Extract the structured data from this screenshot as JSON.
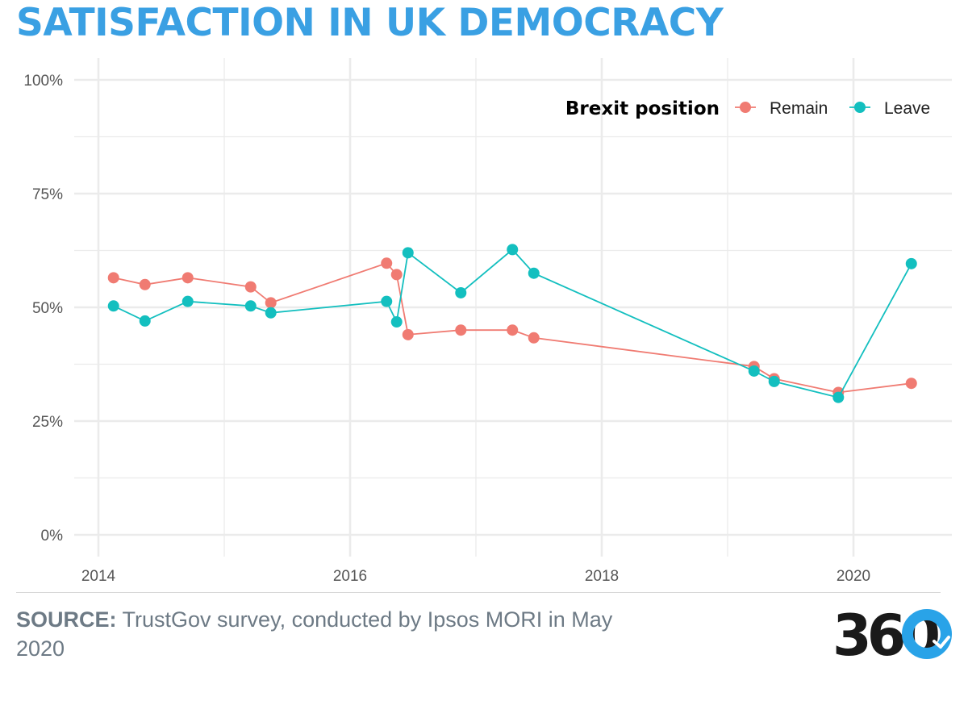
{
  "title": "SATISFACTION IN UK DEMOCRACY",
  "colors": {
    "title": "#3aa0e3",
    "remain": "#f07b72",
    "leave": "#13bfbf",
    "axis_text": "#555555",
    "gridline": "#ebebeb",
    "source_text": "#6d7a85",
    "logo_dark": "#1a1a1a",
    "logo_blue": "#29a3e8"
  },
  "legend": {
    "title": "Brexit position",
    "placement": "top-right"
  },
  "source": {
    "label": "SOURCE:",
    "text": "TrustGov survey, conducted by Ipsos MORI in May 2020"
  },
  "logo": {
    "text": "360",
    "icon": "360-logo"
  },
  "chart_data": {
    "type": "line",
    "title": "SATISFACTION IN UK DEMOCRACY",
    "xlabel": "",
    "ylabel": "",
    "x_range": [
      2013.7,
      2020.8
    ],
    "ylim": [
      0,
      100
    ],
    "x_ticks": [
      2014,
      2016,
      2018,
      2020
    ],
    "x_tick_labels": [
      "2014",
      "2016",
      "2018",
      "2020"
    ],
    "y_ticks": [
      0,
      25,
      50,
      75,
      100
    ],
    "y_tick_labels": [
      "0%",
      "25%",
      "50%",
      "75%",
      "100%"
    ],
    "grid": true,
    "markers": true,
    "series": [
      {
        "name": "Remain",
        "color_key": "remain",
        "x": [
          2014.12,
          2014.37,
          2014.71,
          2015.21,
          2015.37,
          2016.29,
          2016.37,
          2016.46,
          2016.88,
          2017.29,
          2017.46,
          2019.21,
          2019.37,
          2019.88,
          2020.46
        ],
        "y": [
          56.5,
          55,
          56.5,
          54.5,
          51,
          59.7,
          57.2,
          44,
          45,
          45,
          43.3,
          37,
          34.3,
          31.3,
          33.3
        ]
      },
      {
        "name": "Leave",
        "color_key": "leave",
        "x": [
          2014.12,
          2014.37,
          2014.71,
          2015.21,
          2015.37,
          2016.29,
          2016.37,
          2016.46,
          2016.88,
          2017.29,
          2017.46,
          2019.21,
          2019.37,
          2019.88,
          2020.46
        ],
        "y": [
          50.3,
          47,
          51.3,
          50.3,
          48.8,
          51.3,
          46.8,
          62,
          53.2,
          62.7,
          57.5,
          36,
          33.7,
          30.2,
          59.6
        ]
      }
    ]
  }
}
